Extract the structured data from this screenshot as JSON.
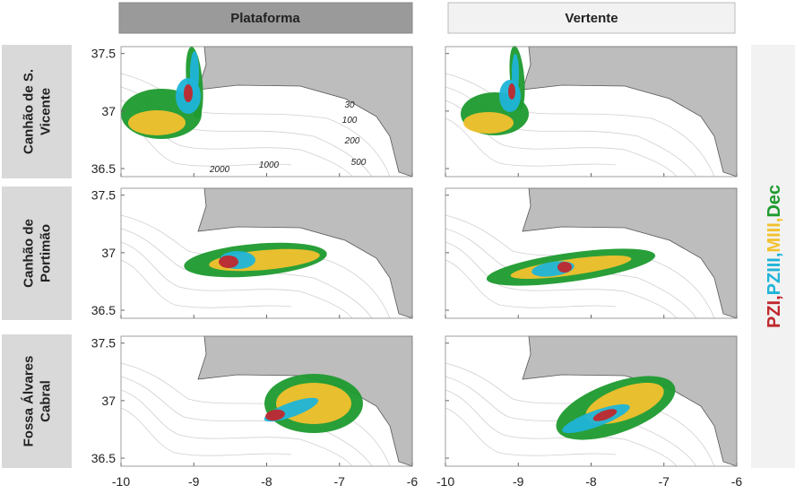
{
  "columns": [
    "Plataforma",
    "Vertente"
  ],
  "rows": [
    [
      "Canhão de S.",
      "Vicente"
    ],
    [
      "Canhão de",
      "Portimão"
    ],
    [
      "Fossa Álvares",
      "Cabral"
    ]
  ],
  "legend": [
    {
      "label": "PZI,",
      "color": "#c0282d"
    },
    {
      "label": "PZIII,",
      "color": "#1fb4d8"
    },
    {
      "label": "MIII,",
      "color": "#f2c12e"
    },
    {
      "label": "Dec",
      "color": "#1e9a2e"
    }
  ],
  "axes": {
    "xlim": [
      -10,
      -6
    ],
    "ylim": [
      36.43,
      37.56
    ],
    "xticks": [
      -10,
      -9,
      -8,
      -7,
      -6
    ],
    "yticks": [
      36.5,
      37,
      37.5
    ]
  },
  "contour_labels": [
    "30",
    "100",
    "200",
    "500",
    "1000",
    "2000"
  ]
}
